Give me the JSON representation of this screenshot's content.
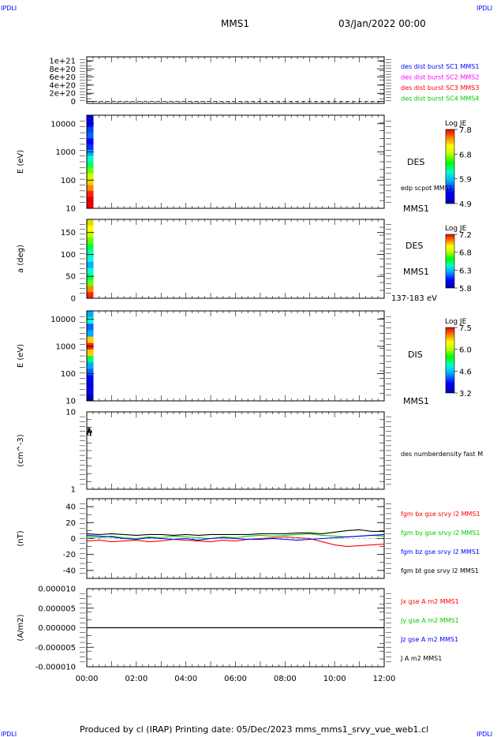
{
  "corner_label": "IPDLI",
  "header": {
    "spacecraft": "MMS1",
    "datetime": "03/Jan/2022 00:00"
  },
  "footer": "Produced by cl (IRAP)   Printing date: 05/Dec/2023   mms_mms1_srvy_vue_web1.cl",
  "colors": {
    "red": "#ff0000",
    "green": "#00cc00",
    "blue": "#0000ff",
    "magenta": "#ff00ff",
    "black": "#000000"
  },
  "time_axis": {
    "range_hours": [
      0,
      12
    ],
    "ticks": [
      "00:00",
      "02:00",
      "04:00",
      "06:00",
      "08:00",
      "10:00",
      "12:00"
    ]
  },
  "chart_data": [
    {
      "type": "line",
      "ylim": [
        0,
        1e+21
      ],
      "ytick_labels": [
        "1e+21",
        "8e+20",
        "6e+20",
        "4e+20",
        "2e+20",
        "0"
      ],
      "legend": [
        {
          "text": "des dist burst SC1 MMS1",
          "color": "#0000ff"
        },
        {
          "text": "des dist burst SC2 MMS2",
          "color": "#ff00ff"
        },
        {
          "text": "des dist burst SC3 MMS3",
          "color": "#ff0000"
        },
        {
          "text": "des dist burst SC4 MMS4",
          "color": "#00cc00"
        }
      ],
      "dashed_baseline": 0
    },
    {
      "type": "heatmap",
      "ylabel": "E (eV)",
      "yscale": "log",
      "ylim": [
        10,
        20000
      ],
      "ytick_labels": [
        "10000",
        "1000",
        "100",
        "10"
      ],
      "instrument": "DES",
      "sub_label": "edp scpot MMS1",
      "bottom_label": "MMS1",
      "colorbar": {
        "title": "Log JE",
        "ticks": [
          "7.8",
          "6.8",
          "5.9",
          "4.9"
        ]
      },
      "data_extent_hours": [
        0,
        0.27
      ]
    },
    {
      "type": "heatmap",
      "ylabel": "a (deg)",
      "ylim": [
        0,
        180
      ],
      "ytick_labels": [
        "150",
        "100",
        "50",
        "0"
      ],
      "instrument": "DES",
      "spacecraft": "MMS1",
      "energy_range": "137-183 eV",
      "colorbar": {
        "title": "Log JE",
        "ticks": [
          "7.2",
          "6.8",
          "6.3",
          "5.8"
        ]
      },
      "data_extent_hours": [
        0,
        0.27
      ]
    },
    {
      "type": "heatmap",
      "ylabel": "E (eV)",
      "yscale": "log",
      "ylim": [
        10,
        20000
      ],
      "ytick_labels": [
        "10000",
        "1000",
        "100",
        "10"
      ],
      "instrument": "DIS",
      "bottom_label": "MMS1",
      "colorbar": {
        "title": "Log JE",
        "ticks": [
          "7.5",
          "6.0",
          "4.6",
          "3.2"
        ]
      },
      "data_extent_hours": [
        0,
        0.27
      ]
    },
    {
      "type": "line",
      "ylabel": "(cm^-3)",
      "yscale": "log",
      "ylim": [
        1,
        10
      ],
      "ytick_labels": [
        "10",
        "1"
      ],
      "legend": [
        {
          "text": "des numberdensity fast M",
          "color": "#000000"
        }
      ],
      "series": [
        {
          "x": [
            0.0,
            0.03,
            0.06,
            0.09,
            0.12,
            0.15,
            0.18,
            0.21
          ],
          "y": [
            5.8,
            5.0,
            6.4,
            5.3,
            6.2,
            4.9,
            5.7,
            5.4
          ]
        }
      ]
    },
    {
      "type": "line",
      "ylabel": "(nT)",
      "ylim": [
        -50,
        50
      ],
      "ytick_labels": [
        "40",
        "20",
        "0",
        "-20",
        "-40"
      ],
      "x": [
        0,
        0.5,
        1,
        1.5,
        2,
        2.5,
        3,
        3.5,
        4,
        4.5,
        5,
        5.5,
        6,
        6.5,
        7,
        7.5,
        8,
        8.5,
        9,
        9.5,
        10,
        10.5,
        11,
        11.5,
        12
      ],
      "series": [
        {
          "name": "fgm bx gse srvy l2 MMS1",
          "color": "#ff0000",
          "values": [
            -3,
            -2,
            -4,
            -3,
            -2,
            -4,
            -3,
            -1,
            -2,
            -3,
            -4,
            -2,
            -3,
            -1,
            0,
            1,
            2,
            1,
            0,
            -4,
            -8,
            -10,
            -9,
            -8,
            -7
          ]
        },
        {
          "name": "fgm by gse srvy l2 MMS1",
          "color": "#00cc00",
          "values": [
            2,
            1,
            3,
            1,
            0,
            2,
            1,
            3,
            2,
            1,
            0,
            2,
            1,
            3,
            4,
            3,
            4,
            5,
            6,
            4,
            3,
            2,
            3,
            4,
            3
          ]
        },
        {
          "name": "fgm bz gse srvy l2 MMS1",
          "color": "#0000ff",
          "values": [
            4,
            3,
            2,
            0,
            -1,
            1,
            0,
            -1,
            0,
            -2,
            0,
            1,
            0,
            -1,
            -1,
            0,
            -1,
            -2,
            -1,
            0,
            1,
            2,
            3,
            4,
            5
          ]
        },
        {
          "name": "fgm bt gse srvy l2 MMS1",
          "color": "#000000",
          "values": [
            6,
            5,
            6,
            5,
            4,
            5,
            5,
            4,
            5,
            4,
            5,
            5,
            5,
            5,
            6,
            6,
            6,
            7,
            7,
            6,
            8,
            10,
            11,
            9,
            9
          ]
        }
      ]
    },
    {
      "type": "line",
      "ylabel": "(A/m2)",
      "ylim": [
        -1e-05,
        1e-05
      ],
      "ytick_labels": [
        "0.000010",
        "0.000005",
        "0.000000",
        "-0.000005",
        "-0.000010"
      ],
      "legend": [
        {
          "text": "Jx gse A m2 MMS1",
          "color": "#ff0000"
        },
        {
          "text": "Jy gse A m2 MMS1",
          "color": "#00cc00"
        },
        {
          "text": "Jz gse A m2 MMS1",
          "color": "#0000ff"
        },
        {
          "text": "J A m2 MMS1",
          "color": "#000000"
        }
      ],
      "series": [
        {
          "x": [
            0,
            12
          ],
          "y": [
            0,
            0
          ]
        }
      ]
    }
  ]
}
